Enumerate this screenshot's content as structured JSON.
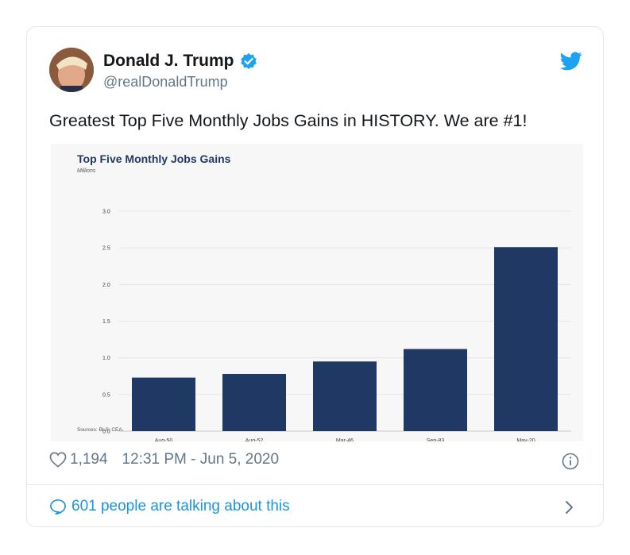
{
  "tweet": {
    "author_name": "Donald J. Trump",
    "handle": "@realDonaldTrump",
    "text": "Greatest Top Five Monthly Jobs Gains in HISTORY. We are #1!",
    "likes": "1,194",
    "timestamp": "12:31 PM - Jun 5, 2020",
    "talking_label": "601 people are talking about this"
  },
  "colors": {
    "link_blue": "#1b95e0",
    "verified_blue": "#1da1f2",
    "bar_navy": "#1f3864",
    "secondary_text": "#657786"
  },
  "icons": [
    "verified-badge-icon",
    "twitter-bird-icon",
    "heart-icon",
    "info-icon",
    "speech-bubble-icon",
    "chevron-right-icon"
  ],
  "chart_data": {
    "type": "bar",
    "title": "Top Five Monthly Jobs Gains",
    "ylabel": "Millions",
    "source": "Sources: BLS; CEA.",
    "categories": [
      "Aug-50",
      "Aug-52",
      "Mar-46",
      "Sep-83",
      "May-20"
    ],
    "values": [
      0.73,
      0.78,
      0.95,
      1.12,
      2.51
    ],
    "ylim": [
      0,
      3.0
    ],
    "yticks": [
      "0.0",
      "0.5",
      "1.0",
      "1.5",
      "2.0",
      "2.5",
      "3.0"
    ],
    "grid": true,
    "legend": "none"
  }
}
